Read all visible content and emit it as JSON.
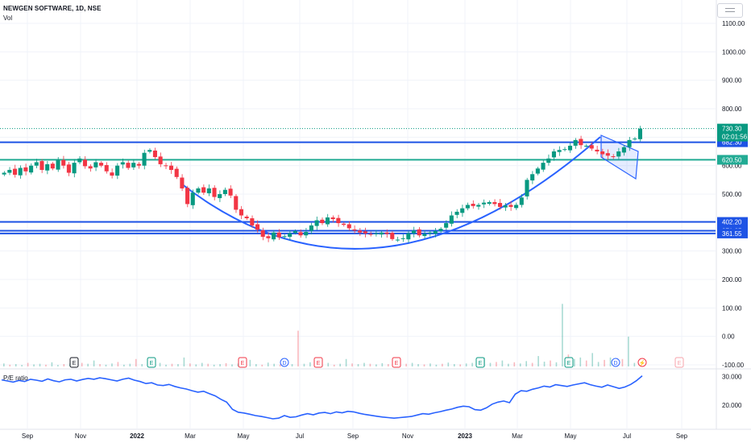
{
  "header": {
    "title": "NEWGEN SOFTWARE, 1D, NSE",
    "volume_label": "Vol",
    "indicator_label": "P/E ratio"
  },
  "chart_data": [
    {
      "type": "line",
      "panel": "price",
      "title": "NEWGEN SOFTWARE, 1D, NSE",
      "x_ticks": [
        "Sep",
        "Nov",
        "2022",
        "Mar",
        "May",
        "Jul",
        "Sep",
        "Nov",
        "2023",
        "Mar",
        "May",
        "Jul",
        "Sep"
      ],
      "y_ticks": [
        "1100.00",
        "1000.00",
        "900.00",
        "800.00",
        "700.00",
        "600.00",
        "500.00",
        "400.00",
        "300.00",
        "200.00",
        "100.00",
        "0.00",
        "-100.00"
      ],
      "ylim": [
        -100,
        1100
      ],
      "series": [
        {
          "values": [
            575,
            585,
            568,
            592,
            580,
            600,
            612,
            585,
            605,
            590,
            620,
            600,
            575,
            610,
            625,
            598,
            590,
            612,
            600,
            580,
            565,
            600,
            612,
            592,
            610,
            600,
            645,
            655,
            630,
            605,
            600,
            585,
            560,
            520,
            465,
            505,
            520,
            505,
            520,
            490,
            500,
            515,
            495,
            445,
            425,
            415,
            390,
            375,
            350,
            345,
            365,
            348,
            352,
            362,
            370,
            355,
            367,
            390,
            408,
            398,
            418,
            412,
            398,
            392,
            380,
            372,
            365,
            362,
            358,
            362,
            365,
            360,
            342,
            340,
            345,
            362,
            372,
            355,
            360,
            365,
            370,
            378,
            398,
            425,
            438,
            450,
            462,
            458,
            462,
            470,
            472,
            465,
            455,
            460,
            455,
            462,
            488,
            550,
            570,
            590,
            610,
            625,
            650,
            655,
            658,
            670,
            690,
            672,
            670,
            660,
            650,
            640,
            635,
            630,
            650,
            665,
            690,
            695,
            730
          ]
        }
      ],
      "current_price": {
        "value": 730.3,
        "label": "730.30",
        "timer": "02:01:56",
        "color": "#089981"
      },
      "horizontal_levels": [
        {
          "value": 682.3,
          "label": "682.30",
          "color": "#1e53e5"
        },
        {
          "value": 620.5,
          "label": "620.50",
          "color": "#22ab94"
        },
        {
          "value": 402.2,
          "label": "402.20",
          "color": "#1e53e5"
        },
        {
          "value": 371.25,
          "label": "371.25",
          "color": "#1e53e5"
        },
        {
          "value": 361.55,
          "label": "361.55",
          "color": "#1e53e5"
        }
      ],
      "colors": {
        "up": "#089981",
        "down": "#f23645",
        "drawing": "#2962ff",
        "level_teal": "#22ab94"
      }
    },
    {
      "type": "bar",
      "panel": "volume",
      "values": [
        10,
        6,
        8,
        5,
        12,
        7,
        9,
        6,
        14,
        5,
        8,
        10,
        6,
        12,
        9,
        20,
        8,
        6,
        10,
        15,
        6,
        9,
        25,
        8,
        5,
        10,
        12,
        6,
        9,
        8,
        30,
        10,
        7,
        12,
        9,
        6,
        8,
        11,
        7,
        10,
        9,
        22,
        8,
        6,
        13,
        9,
        7,
        10,
        8,
        120,
        9,
        14,
        8,
        7,
        12,
        6,
        9,
        25,
        10,
        8,
        12,
        9,
        7,
        11,
        8,
        10,
        6,
        9,
        12,
        8,
        7,
        10,
        6,
        9,
        13,
        8,
        7,
        10,
        12,
        9,
        30,
        12,
        15,
        20,
        9,
        14,
        10,
        18,
        12,
        35,
        16,
        20,
        14,
        210,
        40,
        25,
        30,
        20,
        45,
        15,
        22,
        30,
        18,
        25,
        100,
        12
      ],
      "colors": {
        "up": "#089981",
        "down": "#f23645"
      },
      "event_markers": [
        {
          "label": "E",
          "color": "#131722"
        },
        {
          "label": "E",
          "color": "#089981"
        },
        {
          "label": "E",
          "color": "#f23645"
        },
        {
          "label": "D",
          "color": "#2962ff"
        },
        {
          "label": "E",
          "color": "#f23645"
        },
        {
          "label": "E",
          "color": "#f23645"
        },
        {
          "label": "E",
          "color": "#089981"
        },
        {
          "label": "E",
          "color": "#089981"
        },
        {
          "label": "D",
          "color": "#2962ff"
        },
        {
          "label": "⚡",
          "color": "#f23645"
        },
        {
          "label": "E",
          "color": "#f7a3ab"
        }
      ]
    },
    {
      "type": "line",
      "panel": "indicator",
      "title": "P/E ratio",
      "y_ticks": [
        "30.000",
        "20.000"
      ],
      "ylim": [
        13.5,
        31.5
      ],
      "series": [
        {
          "name": "P/E ratio",
          "values": [
            28.8,
            28.4,
            28.0,
            28.6,
            28.2,
            29.0,
            28.7,
            28.3,
            29.1,
            28.5,
            28.1,
            28.8,
            29.0,
            28.4,
            28.9,
            29.3,
            29.0,
            29.5,
            29.2,
            28.8,
            28.4,
            29.0,
            29.4,
            28.7,
            28.2,
            27.5,
            27.8,
            27.0,
            26.8,
            27.2,
            26.5,
            26.0,
            25.6,
            25.0,
            24.5,
            24.8,
            24.0,
            23.2,
            22.0,
            21.0,
            18.5,
            17.5,
            17.2,
            16.8,
            16.3,
            16.0,
            15.6,
            15.2,
            15.4,
            16.3,
            15.7,
            15.9,
            16.5,
            17.0,
            16.6,
            17.2,
            17.4,
            17.0,
            17.6,
            17.3,
            17.8,
            17.6,
            17.1,
            16.7,
            16.4,
            16.1,
            15.8,
            15.6,
            15.4,
            15.6,
            15.8,
            16.0,
            16.5,
            17.0,
            16.8,
            17.3,
            17.7,
            18.2,
            18.6,
            19.2,
            19.6,
            19.4,
            18.4,
            18.2,
            19.0,
            20.3,
            21.0,
            21.4,
            20.8,
            23.8,
            25.0,
            24.8,
            25.5,
            26.0,
            26.6,
            26.3,
            27.1,
            26.8,
            26.5,
            27.0,
            27.4,
            27.8,
            27.1,
            26.6,
            26.2,
            27.0,
            26.4,
            25.8,
            26.3,
            27.2,
            28.5,
            30.2
          ]
        }
      ],
      "color": "#2962ff"
    }
  ]
}
